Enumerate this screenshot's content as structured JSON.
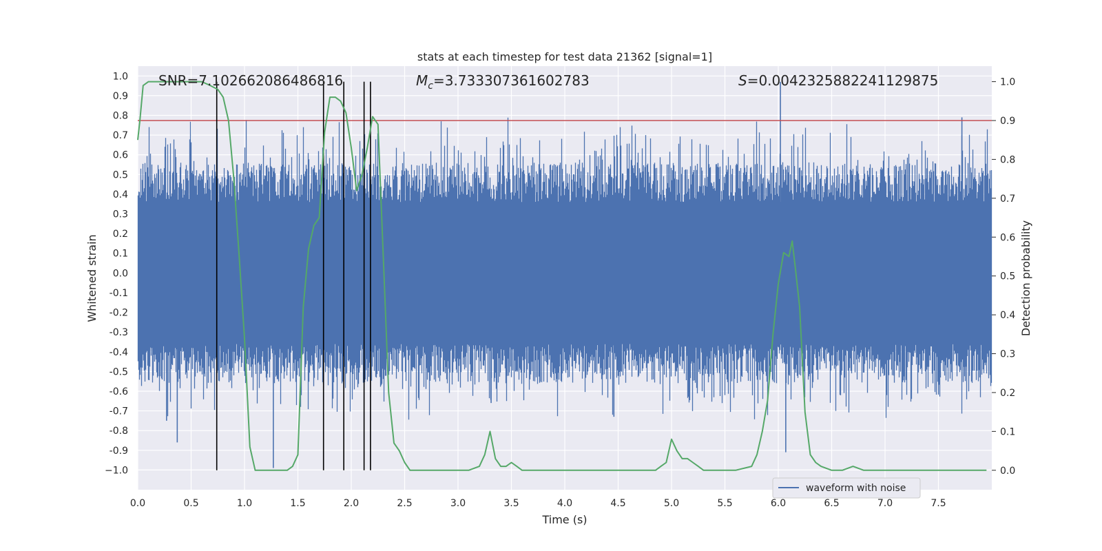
{
  "chart_data": {
    "type": "line",
    "title": "stats at each timestep for test data 21362 [signal=1]",
    "xlabel": "Time (s)",
    "ylabel_left": "Whitened strain",
    "ylabel_right": "Detection probability",
    "xlim": [
      0,
      8
    ],
    "ylim_left": [
      -1.1,
      1.05
    ],
    "ylim_right": [
      -0.05,
      1.04
    ],
    "grid": true,
    "legend_position": "lower-right",
    "xticks": [
      "0.0",
      "0.5",
      "1.0",
      "1.5",
      "2.0",
      "2.5",
      "3.0",
      "3.5",
      "4.0",
      "4.5",
      "5.0",
      "5.5",
      "6.0",
      "6.5",
      "7.0",
      "7.5"
    ],
    "yticks_left": [
      "1.0",
      "0.9",
      "0.8",
      "0.7",
      "0.6",
      "0.5",
      "0.4",
      "0.3",
      "0.2",
      "0.1",
      "0.0",
      "-0.1",
      "-0.2",
      "-0.3",
      "-0.4",
      "-0.5",
      "-0.6",
      "-0.7",
      "-0.8",
      "-0.9",
      "−1.0"
    ],
    "yticks_right": [
      "1.0",
      "0.9",
      "0.8",
      "0.7",
      "0.6",
      "0.5",
      "0.4",
      "0.3",
      "0.2",
      "0.1",
      "0.0"
    ],
    "annotations": {
      "snr": "SNR=7.102662086486816",
      "mc_symbol": "M",
      "mc_sub": "c",
      "mc_value": "=3.733307361602783",
      "s_symbol": "S",
      "s_value": "=0.004232588224112987​5"
    },
    "threshold": {
      "value": 0.9,
      "color": "#c44e52"
    },
    "vertical_markers": [
      0.74,
      1.74,
      1.93,
      2.12,
      2.18
    ],
    "series": [
      {
        "name": "waveform with noise",
        "color": "#4c72b0",
        "kind": "noise",
        "typical_amplitude": 0.36,
        "min": -0.99,
        "max": 0.97,
        "spikes": [
          {
            "t": 0.37,
            "v": -0.86
          },
          {
            "t": 0.27,
            "v": -0.75
          },
          {
            "t": 1.27,
            "v": -0.99
          },
          {
            "t": 6.02,
            "v": 0.97
          },
          {
            "t": 6.07,
            "v": -0.91
          },
          {
            "t": 7.72,
            "v": 0.79
          },
          {
            "t": 4.46,
            "v": -0.73
          },
          {
            "t": 3.31,
            "v": -0.66
          }
        ]
      },
      {
        "kind": "probability",
        "color": "#55a868",
        "t": [
          0.0,
          0.02,
          0.05,
          0.1,
          0.2,
          0.3,
          0.5,
          0.6,
          0.68,
          0.75,
          0.8,
          0.85,
          0.9,
          0.95,
          1.0,
          1.05,
          1.1,
          1.15,
          1.2,
          1.3,
          1.4,
          1.45,
          1.5,
          1.55,
          1.6,
          1.65,
          1.7,
          1.75,
          1.8,
          1.85,
          1.9,
          1.95,
          2.0,
          2.05,
          2.1,
          2.15,
          2.2,
          2.25,
          2.3,
          2.35,
          2.4,
          2.45,
          2.5,
          2.55,
          2.6,
          2.7,
          2.8,
          3.0,
          3.1,
          3.2,
          3.25,
          3.3,
          3.35,
          3.4,
          3.45,
          3.5,
          3.55,
          3.6,
          3.65,
          3.7,
          3.8,
          4.0,
          4.2,
          4.4,
          4.6,
          4.8,
          4.85,
          4.9,
          4.95,
          5.0,
          5.05,
          5.1,
          5.15,
          5.2,
          5.25,
          5.3,
          5.35,
          5.4,
          5.5,
          5.6,
          5.75,
          5.8,
          5.85,
          5.9,
          5.95,
          6.0,
          6.05,
          6.1,
          6.13,
          6.16,
          6.2,
          6.25,
          6.3,
          6.35,
          6.4,
          6.5,
          6.6,
          6.7,
          6.8,
          7.0,
          7.2,
          7.4,
          7.6,
          7.7,
          7.8,
          7.95
        ],
        "p": [
          0.85,
          0.9,
          0.99,
          1.0,
          1.0,
          1.0,
          1.0,
          1.0,
          0.99,
          0.98,
          0.96,
          0.9,
          0.75,
          0.55,
          0.34,
          0.06,
          0.0,
          0.0,
          0.0,
          0.0,
          0.0,
          0.01,
          0.04,
          0.42,
          0.57,
          0.63,
          0.65,
          0.87,
          0.96,
          0.96,
          0.95,
          0.92,
          0.83,
          0.72,
          0.76,
          0.83,
          0.91,
          0.89,
          0.55,
          0.2,
          0.07,
          0.05,
          0.02,
          0.0,
          0.0,
          0.0,
          0.0,
          0.0,
          0.0,
          0.01,
          0.04,
          0.1,
          0.03,
          0.01,
          0.01,
          0.02,
          0.01,
          0.0,
          0.0,
          0.0,
          0.0,
          0.0,
          0.0,
          0.0,
          0.0,
          0.0,
          0.0,
          0.01,
          0.02,
          0.08,
          0.05,
          0.03,
          0.03,
          0.02,
          0.01,
          0.0,
          0.0,
          0.0,
          0.0,
          0.0,
          0.01,
          0.04,
          0.1,
          0.18,
          0.35,
          0.48,
          0.56,
          0.55,
          0.59,
          0.52,
          0.42,
          0.15,
          0.04,
          0.02,
          0.01,
          0.0,
          0.0,
          0.01,
          0.0,
          0.0,
          0.0,
          0.0,
          0.0,
          0.0,
          0.0,
          0.0
        ]
      }
    ]
  }
}
